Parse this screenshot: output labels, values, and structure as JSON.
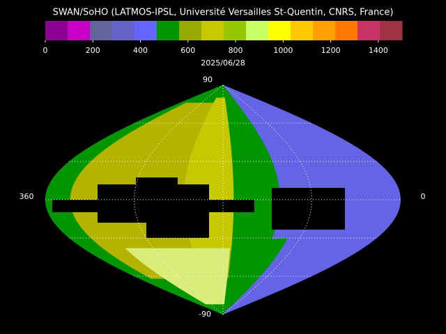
{
  "title": "SWAN/SoHO (LATMOS-IPSL, Université Versailles St-Quentin, CNRS, France)",
  "colorbar": {
    "range": [
      0,
      1500
    ],
    "ticks": [
      0,
      200,
      400,
      600,
      800,
      1000,
      1200,
      1400
    ],
    "colors": [
      "#8c0096",
      "#c800c8",
      "#64649b",
      "#6464c8",
      "#6464ff",
      "#009600",
      "#96aa00",
      "#c8c800",
      "#96c800",
      "#c8ff64",
      "#ffff00",
      "#ffc800",
      "#ffa000",
      "#ff7800",
      "#c83264",
      "#a03246"
    ]
  },
  "date": "2025/06/28",
  "map": {
    "top_label": "90",
    "bottom_label": "-90",
    "left_label": "360",
    "right_label": "0"
  }
}
